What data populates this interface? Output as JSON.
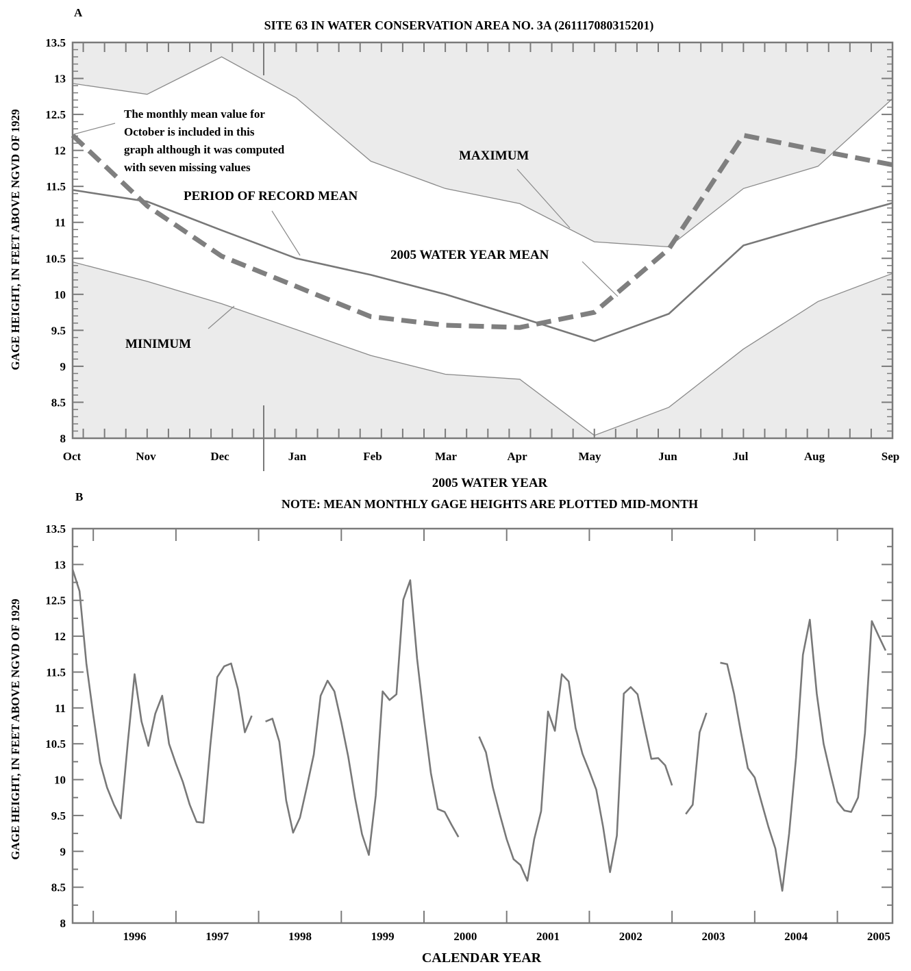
{
  "chart_data": [
    {
      "panel_label": "A",
      "type": "line",
      "title": "SITE 63 IN WATER CONSERVATION AREA NO. 3A (261117080315201)",
      "xlabel": "2005 WATER YEAR",
      "ylabel": "GAGE HEIGHT, IN FEET ABOVE NGVD OF 1929",
      "ylim": [
        8,
        13.5
      ],
      "y_ticks": [
        "8",
        "8.5",
        "9",
        "9.5",
        "10",
        "10.5",
        "11",
        "11.5",
        "12",
        "12.5",
        "13",
        "13.5"
      ],
      "categories": [
        "Oct",
        "Nov",
        "Dec",
        "Jan",
        "Feb",
        "Mar",
        "Apr",
        "May",
        "Jun",
        "Jul",
        "Aug",
        "Sep"
      ],
      "series": [
        {
          "name": "MAXIMUM",
          "values": [
            12.93,
            12.78,
            13.3,
            12.73,
            11.85,
            11.47,
            11.26,
            10.73,
            10.66,
            11.47,
            11.78,
            12.72
          ]
        },
        {
          "name": "MINIMUM",
          "values": [
            10.45,
            10.18,
            9.87,
            9.51,
            9.15,
            8.89,
            8.82,
            8.04,
            8.43,
            9.24,
            9.9,
            10.29
          ]
        },
        {
          "name": "PERIOD OF RECORD MEAN",
          "values": [
            11.45,
            11.29,
            10.89,
            10.5,
            10.27,
            10.0,
            9.68,
            9.35,
            9.73,
            10.68,
            10.98,
            11.27
          ]
        },
        {
          "name": "2005 WATER YEAR MEAN",
          "values": [
            12.21,
            11.23,
            10.53,
            10.11,
            9.69,
            9.57,
            9.54,
            9.75,
            10.63,
            12.21,
            12.0,
            11.8
          ]
        }
      ],
      "annotations": [
        "The monthly mean value for",
        "October is included in this",
        "graph although it was computed",
        "with seven missing values"
      ]
    },
    {
      "panel_label": "B",
      "type": "line",
      "title": "NOTE: MEAN MONTHLY GAGE HEIGHTS ARE PLOTTED MID-MONTH",
      "xlabel": "CALENDAR YEAR",
      "ylabel": "GAGE HEIGHT, IN FEET ABOVE NGVD OF 1929",
      "ylim": [
        8,
        13.5
      ],
      "xlim": [
        "1995-10",
        "2005-09"
      ],
      "y_ticks": [
        "8",
        "8.5",
        "9",
        "9.5",
        "10",
        "10.5",
        "11",
        "11.5",
        "12",
        "12.5",
        "13",
        "13.5"
      ],
      "x_ticks": [
        "1996",
        "1997",
        "1998",
        "1999",
        "2000",
        "2001",
        "2002",
        "2003",
        "2004",
        "2005"
      ],
      "segments": [
        {
          "start": "1995-10",
          "values": [
            12.93,
            12.63,
            11.62,
            10.9,
            10.24,
            9.89,
            9.65,
            9.46,
            10.51,
            11.47,
            10.81,
            10.47,
            10.92,
            11.17,
            10.5,
            10.22,
            9.97,
            9.65,
            9.41,
            9.4,
            10.49,
            11.43,
            11.58,
            11.62,
            11.26,
            10.66,
            10.89
          ]
        },
        {
          "start": "1998-02",
          "values": [
            10.81,
            10.85,
            10.53,
            9.71,
            9.26,
            9.47,
            9.9,
            10.35,
            11.17,
            11.38,
            11.23,
            10.8,
            10.32,
            9.74,
            9.24,
            8.95,
            9.78,
            11.23,
            11.11,
            11.19,
            12.51,
            12.78,
            11.69,
            10.85,
            10.09,
            9.59,
            9.55,
            9.37,
            9.2
          ]
        },
        {
          "start": "2000-09",
          "values": [
            10.6,
            10.38,
            9.89,
            9.52,
            9.17,
            8.89,
            8.81,
            8.59,
            9.17,
            9.56,
            10.95,
            10.68,
            11.47,
            11.37,
            10.72,
            10.36,
            10.12,
            9.86,
            9.34,
            8.71,
            9.22,
            11.2,
            11.29,
            11.19,
            10.73,
            10.29,
            10.3,
            10.2,
            9.92
          ]
        },
        {
          "start": "2003-03",
          "values": [
            9.52,
            9.65,
            10.66,
            10.93
          ]
        },
        {
          "start": "2003-08",
          "values": [
            11.63,
            11.61,
            11.2,
            10.66,
            10.16,
            10.03,
            9.68,
            9.34,
            9.04,
            8.45,
            9.25,
            10.31,
            11.74,
            12.23,
            11.2,
            10.5,
            10.08,
            9.69,
            9.57,
            9.55,
            9.75,
            10.65,
            12.21,
            12.0,
            11.8
          ]
        }
      ]
    }
  ],
  "labels": {
    "panel_a": "A",
    "panel_b": "B",
    "maximum": "MAXIMUM",
    "minimum": "MINIMUM",
    "period_mean": "PERIOD OF RECORD MEAN",
    "wy_mean": "2005 WATER YEAR MEAN"
  },
  "colors": {
    "shade": "#ebebeb",
    "mean_line": "#787878",
    "wy_dash": "#7f7f7f",
    "envelope": "#8a8a8a",
    "axes": "#7a7a7a",
    "text": "#000000"
  }
}
